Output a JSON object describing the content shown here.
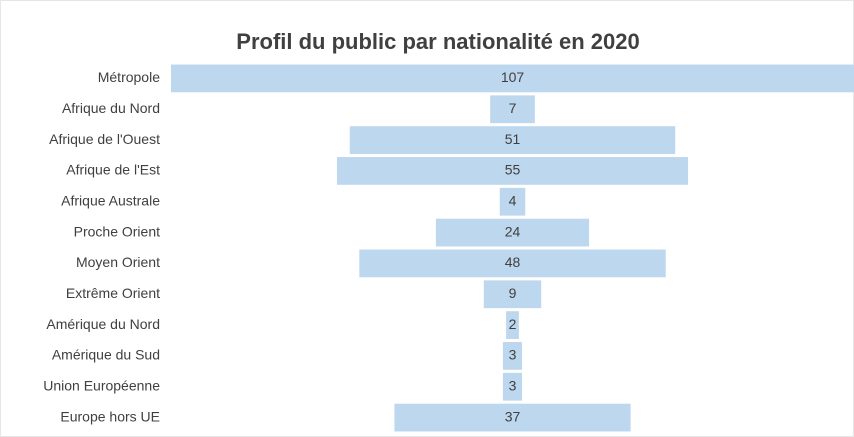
{
  "chart_data": {
    "type": "funnel",
    "title": "Profil du public par nationalité en 2020",
    "categories": [
      "Métropole",
      "Afrique du Nord",
      "Afrique de l'Ouest",
      "Afrique de l'Est",
      "Afrique Australe",
      "Proche Orient",
      "Moyen Orient",
      "Extrême Orient",
      "Amérique du Nord",
      "Amérique du Sud",
      "Union Européenne",
      "Europe hors UE"
    ],
    "values": [
      107,
      7,
      51,
      55,
      4,
      24,
      48,
      9,
      2,
      3,
      3,
      37
    ],
    "color": "#bdd7ee"
  }
}
